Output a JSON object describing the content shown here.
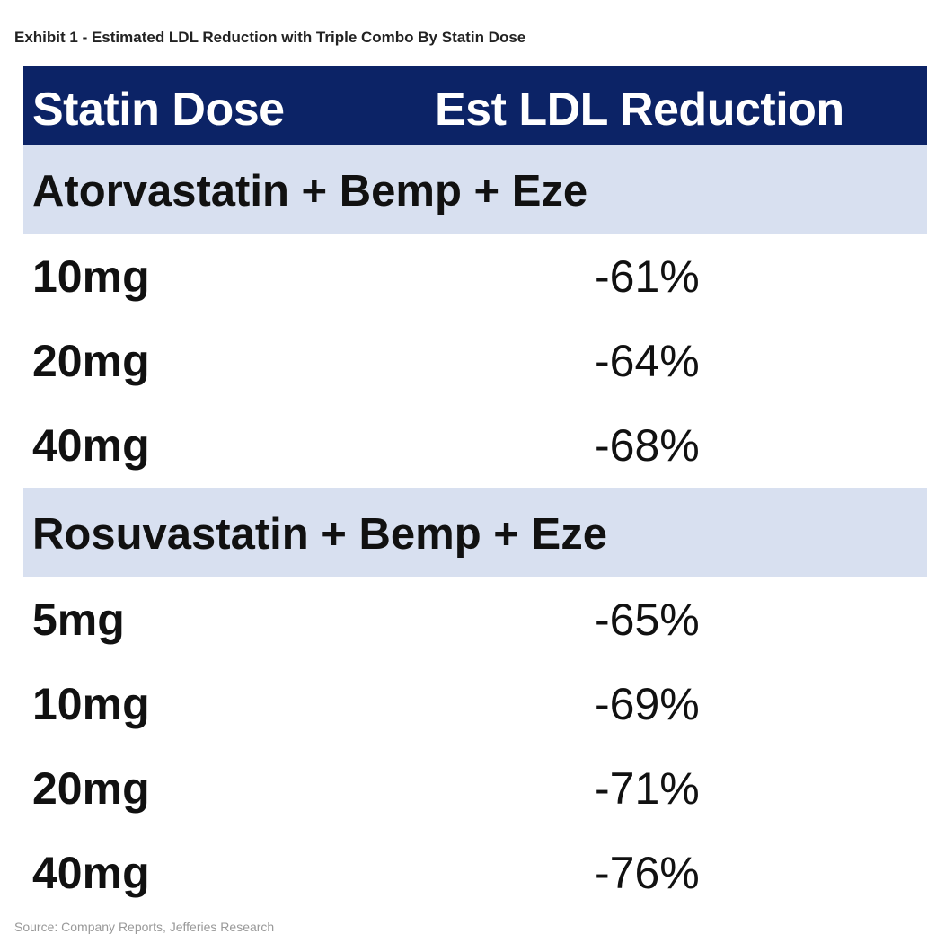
{
  "exhibit_title": "Exhibit 1 - Estimated LDL Reduction with Triple Combo By Statin Dose",
  "table": {
    "headers": [
      "Statin Dose",
      "Est LDL Reduction"
    ],
    "sections": [
      {
        "title": "Atorvastatin + Bemp + Eze",
        "rows": [
          {
            "dose": "10mg",
            "reduction": "-61%"
          },
          {
            "dose": "20mg",
            "reduction": "-64%"
          },
          {
            "dose": "40mg",
            "reduction": "-68%"
          }
        ]
      },
      {
        "title": "Rosuvastatin + Bemp + Eze",
        "rows": [
          {
            "dose": "5mg",
            "reduction": "-65%"
          },
          {
            "dose": "10mg",
            "reduction": "-69%"
          },
          {
            "dose": "20mg",
            "reduction": "-71%"
          },
          {
            "dose": "40mg",
            "reduction": "-76%"
          }
        ]
      }
    ]
  },
  "colors": {
    "header_bg": "#0c2366",
    "header_text": "#ffffff",
    "section_bg": "#d8e0f0"
  },
  "source_note": "Source: Company Reports, Jefferies Research"
}
